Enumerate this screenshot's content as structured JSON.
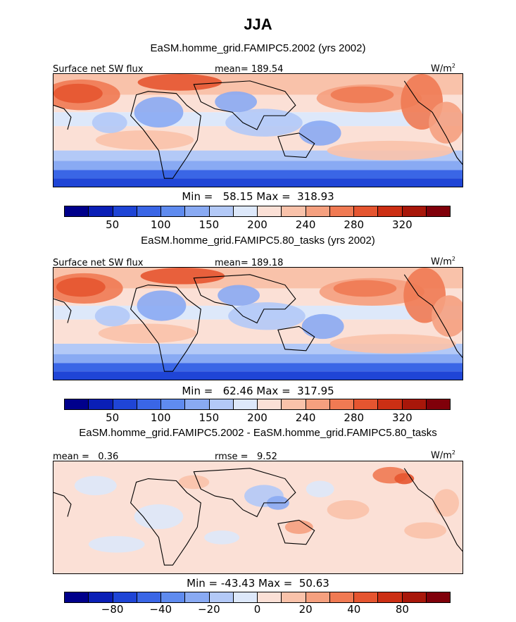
{
  "figure": {
    "season_title": "JJA",
    "units_word": "W/m",
    "units_exp": "2"
  },
  "panels": [
    {
      "title": "EaSM.homme_grid.FAMIPC5.2002 (yrs 2002)",
      "variable": "Surface net SW flux",
      "stat": "mean= 189.54",
      "minmax": "Min =   58.15 Max =  318.93",
      "theme": "abs"
    },
    {
      "title": "EaSM.homme_grid.FAMIPC5.80_tasks (yrs 2002)",
      "variable": "Surface net SW flux",
      "stat": "mean= 189.18",
      "minmax": "Min =   62.46 Max =  317.95",
      "theme": "abs"
    },
    {
      "title": "EaSM.homme_grid.FAMIPC5.2002 - EaSM.homme_grid.FAMIPC5.80_tasks",
      "stat_left": "mean =   0.36",
      "stat_right": "rmse =   9.52",
      "minmax": "Min = -43.43 Max =  50.63",
      "theme": "diff"
    }
  ],
  "colorbars": {
    "colors": [
      "#00008b",
      "#0a1fb6",
      "#1f45d6",
      "#3a66e6",
      "#5f8bef",
      "#89aaf3",
      "#b3c9f7",
      "#dde8fa",
      "#fbe0d6",
      "#f9c2aa",
      "#f5a07f",
      "#f07a53",
      "#e55530",
      "#cc2f14",
      "#a8170a",
      "#80000a"
    ],
    "abs_ticks": [
      "50",
      "100",
      "150",
      "200",
      "240",
      "280",
      "320"
    ],
    "diff_ticks": [
      "−80",
      "−40",
      "−20",
      "0",
      "20",
      "40",
      "80"
    ]
  }
}
